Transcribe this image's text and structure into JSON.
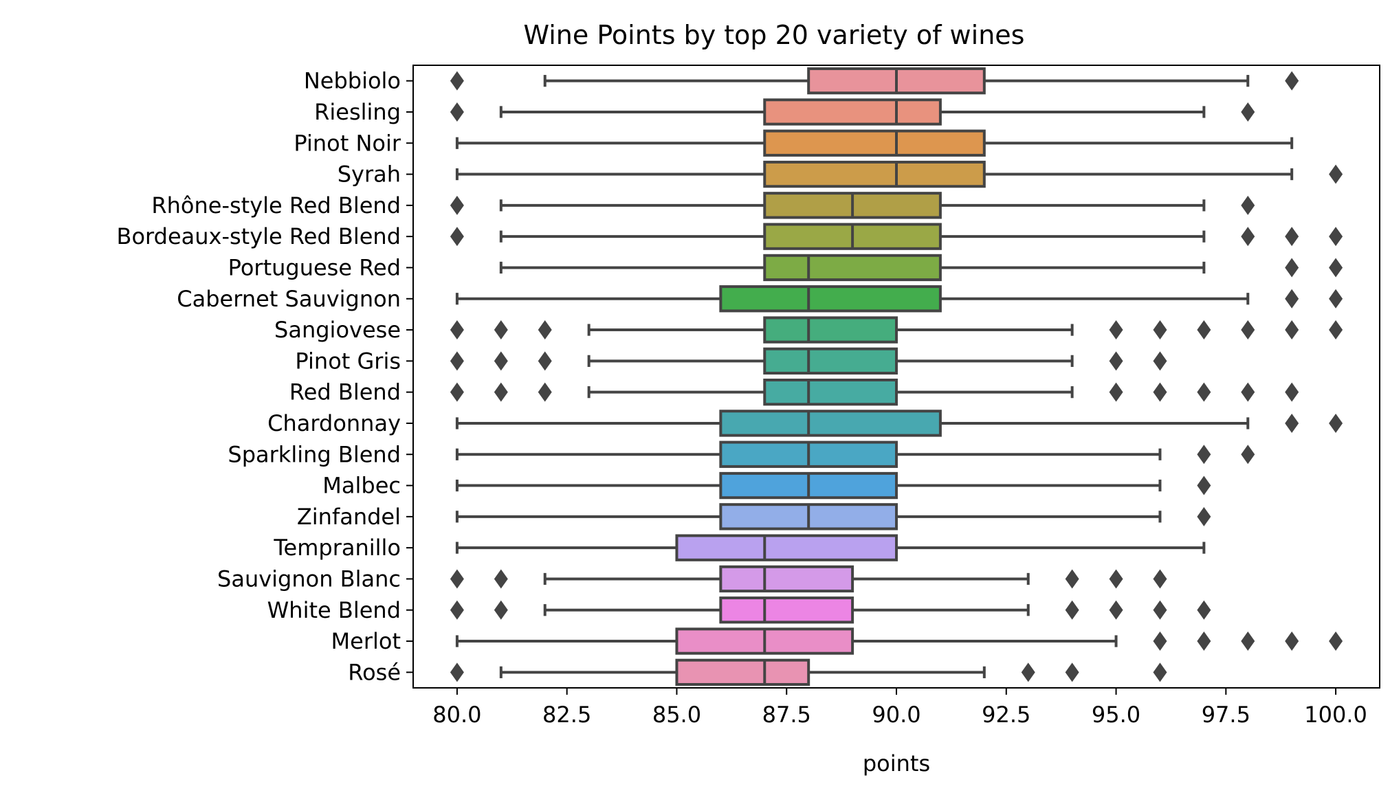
{
  "chart_data": {
    "type": "boxplot",
    "orientation": "horizontal",
    "title": "Wine Points by top 20 variety of wines",
    "xlabel": "points",
    "ylabel": "",
    "xlim": [
      79.0,
      101.0
    ],
    "xticks": [
      "80.0",
      "82.5",
      "85.0",
      "87.5",
      "90.0",
      "92.5",
      "95.0",
      "97.5",
      "100.0"
    ],
    "xtick_values": [
      80,
      82.5,
      85,
      87.5,
      90,
      92.5,
      95,
      97.5,
      100
    ],
    "grid": false,
    "legend": "none",
    "categories": [
      {
        "name": "Nebbiolo",
        "whislo": 82,
        "q1": 88,
        "med": 90,
        "q3": 92,
        "whishi": 98,
        "fliers": [
          80,
          99
        ],
        "color": "#e8939b"
      },
      {
        "name": "Riesling",
        "whislo": 81,
        "q1": 87,
        "med": 90,
        "q3": 91,
        "whishi": 97,
        "fliers": [
          80,
          98
        ],
        "color": "#e8927e"
      },
      {
        "name": "Pinot Noir",
        "whislo": 80,
        "q1": 87,
        "med": 90,
        "q3": 92,
        "whishi": 99,
        "fliers": [],
        "color": "#dd964f"
      },
      {
        "name": "Syrah",
        "whislo": 80,
        "q1": 87,
        "med": 90,
        "q3": 92,
        "whishi": 99,
        "fliers": [
          100
        ],
        "color": "#cc9c4a"
      },
      {
        "name": "Rhône-style Red Blend",
        "whislo": 81,
        "q1": 87,
        "med": 89,
        "q3": 91,
        "whishi": 97,
        "fliers": [
          80,
          98
        ],
        "color": "#b09f47"
      },
      {
        "name": "Bordeaux-style Red Blend",
        "whislo": 81,
        "q1": 87,
        "med": 89,
        "q3": 91,
        "whishi": 97,
        "fliers": [
          80,
          98,
          99,
          100
        ],
        "color": "#9aa846"
      },
      {
        "name": "Portuguese Red",
        "whislo": 81,
        "q1": 87,
        "med": 88,
        "q3": 91,
        "whishi": 97,
        "fliers": [
          99,
          100
        ],
        "color": "#7dab45"
      },
      {
        "name": "Cabernet Sauvignon",
        "whislo": 80,
        "q1": 86,
        "med": 88,
        "q3": 91,
        "whishi": 98,
        "fliers": [
          99,
          100
        ],
        "color": "#43ad4d"
      },
      {
        "name": "Sangiovese",
        "whislo": 83,
        "q1": 87,
        "med": 88,
        "q3": 90,
        "whishi": 94,
        "fliers": [
          80,
          81,
          82,
          95,
          96,
          97,
          98,
          99,
          100
        ],
        "color": "#45ad7d"
      },
      {
        "name": "Pinot Gris",
        "whislo": 83,
        "q1": 87,
        "med": 88,
        "q3": 90,
        "whishi": 94,
        "fliers": [
          80,
          81,
          82,
          95,
          96
        ],
        "color": "#46ac91"
      },
      {
        "name": "Red Blend",
        "whislo": 83,
        "q1": 87,
        "med": 88,
        "q3": 90,
        "whishi": 94,
        "fliers": [
          80,
          81,
          82,
          95,
          96,
          97,
          98,
          99
        ],
        "color": "#47aba2"
      },
      {
        "name": "Chardonnay",
        "whislo": 80,
        "q1": 86,
        "med": 88,
        "q3": 91,
        "whishi": 98,
        "fliers": [
          99,
          100
        ],
        "color": "#48a8b0"
      },
      {
        "name": "Sparkling Blend",
        "whislo": 80,
        "q1": 86,
        "med": 88,
        "q3": 90,
        "whishi": 96,
        "fliers": [
          97,
          98
        ],
        "color": "#4aa7c4"
      },
      {
        "name": "Malbec",
        "whislo": 80,
        "q1": 86,
        "med": 88,
        "q3": 90,
        "whishi": 96,
        "fliers": [
          97
        ],
        "color": "#4fa3dc"
      },
      {
        "name": "Zinfandel",
        "whislo": 80,
        "q1": 86,
        "med": 88,
        "q3": 90,
        "whishi": 96,
        "fliers": [
          97
        ],
        "color": "#92aee8"
      },
      {
        "name": "Tempranillo",
        "whislo": 80,
        "q1": 85,
        "med": 87,
        "q3": 90,
        "whishi": 97,
        "fliers": [],
        "color": "#b9a1ef"
      },
      {
        "name": "Sauvignon Blanc",
        "whislo": 82,
        "q1": 86,
        "med": 87,
        "q3": 89,
        "whishi": 93,
        "fliers": [
          80,
          81,
          94,
          95,
          96
        ],
        "color": "#d49ae8"
      },
      {
        "name": "White Blend",
        "whislo": 82,
        "q1": 86,
        "med": 87,
        "q3": 89,
        "whishi": 93,
        "fliers": [
          80,
          81,
          94,
          95,
          96,
          97
        ],
        "color": "#ec85e4"
      },
      {
        "name": "Merlot",
        "whislo": 80,
        "q1": 85,
        "med": 87,
        "q3": 89,
        "whishi": 95,
        "fliers": [
          96,
          97,
          98,
          99,
          100
        ],
        "color": "#e98ec7"
      },
      {
        "name": "Rosé",
        "whislo": 81,
        "q1": 85,
        "med": 87,
        "q3": 88,
        "whishi": 92,
        "fliers": [
          80,
          93,
          94,
          96
        ],
        "color": "#e893b2"
      }
    ]
  },
  "colors": {
    "line": "#444444",
    "axis": "#000000"
  }
}
